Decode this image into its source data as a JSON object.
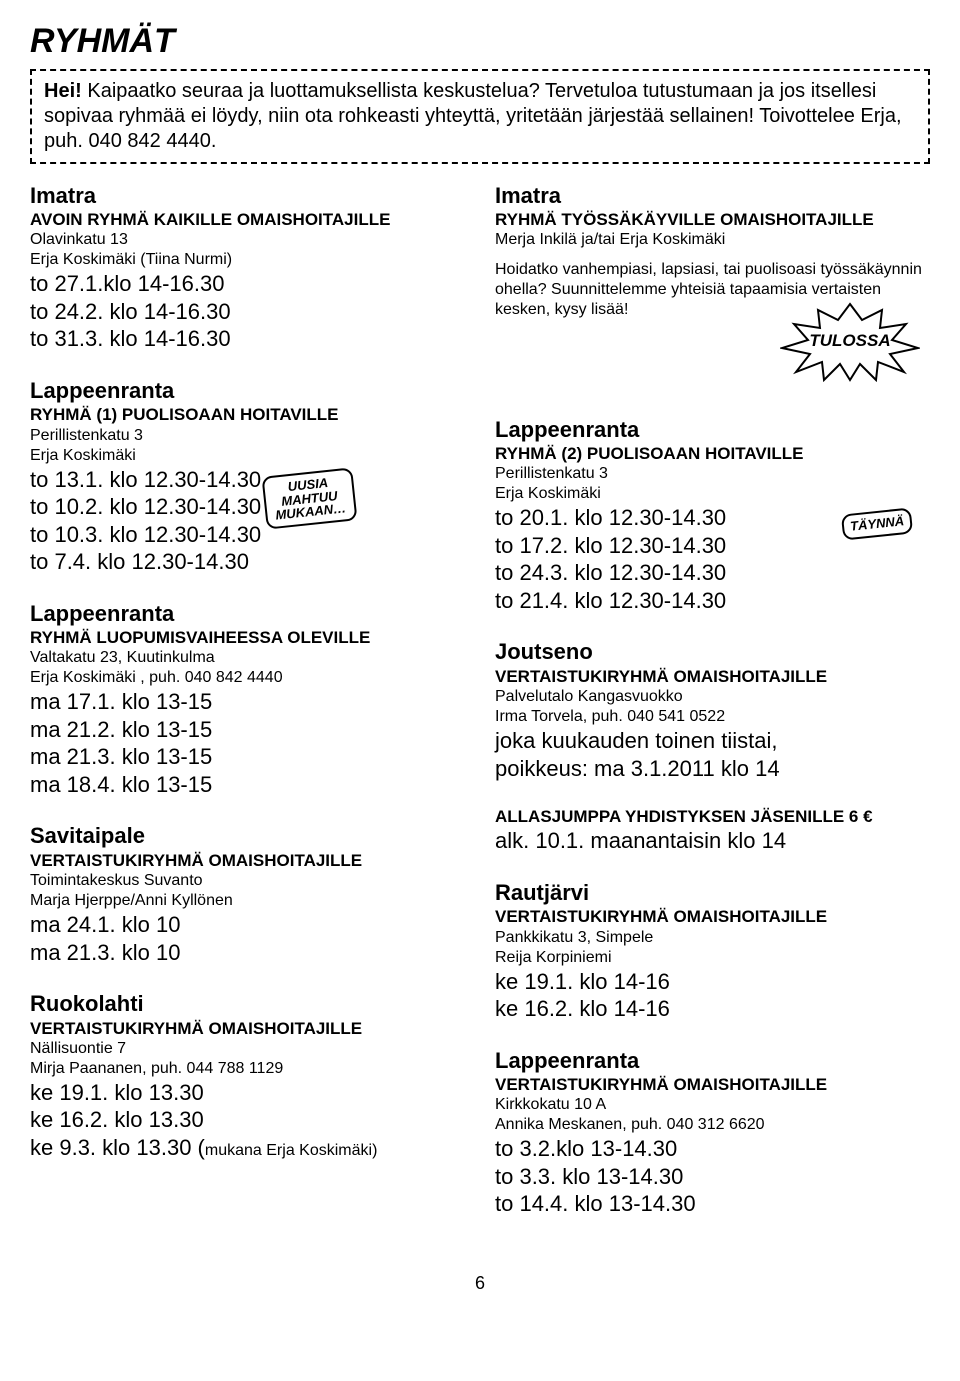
{
  "title": "RYHMÄT",
  "intro": {
    "hei": "Hei!",
    "text": "Kaipaatko seuraa ja luottamuksellista keskustelua? Tervetuloa tutustumaan ja jos itsellesi sopivaa ryhmää ei löydy, niin ota rohkeasti yhteyttä, yritetään järjestää sellainen! Toivottelee Erja, puh. 040 842 4440."
  },
  "callouts": {
    "uusia": "UUSIA\nMAHTUU\nMUKAAN…",
    "taynna": "TÄYNNÄ",
    "tulossa": "TULOSSA"
  },
  "left": [
    {
      "city": "Imatra",
      "gname": "AVOIN RYHMÄ KAIKILLE OMAISHOITAJILLE",
      "lines": [
        "Olavinkatu 13",
        "Erja Koskimäki  (Tiina Nurmi)"
      ],
      "dates": [
        "to 27.1.klo 14-16.30",
        "to 24.2. klo 14-16.30",
        "to 31.3. klo 14-16.30"
      ]
    },
    {
      "city": "Lappeenranta",
      "gname": "RYHMÄ (1) PUOLISOAAN HOITAVILLE",
      "lines": [
        "Perillistenkatu 3",
        "Erja Koskimäki"
      ],
      "dates": [
        "to 13.1. klo 12.30-14.30",
        "to 10.2. klo 12.30-14.30",
        "to 10.3. klo 12.30-14.30",
        "to 7.4. klo 12.30-14.30"
      ],
      "callout": "uusia"
    },
    {
      "city": "Lappeenranta",
      "gname": "RYHMÄ LUOPUMISVAIHEESSA OLEVILLE",
      "lines": [
        "Valtakatu 23, Kuutinkulma",
        "Erja Koskimäki , puh. 040 842 4440"
      ],
      "dates": [
        "ma 17.1. klo 13-15",
        "ma 21.2. klo 13-15",
        "ma 21.3. klo 13-15",
        "ma 18.4. klo 13-15"
      ]
    },
    {
      "city": "Savitaipale",
      "gname": "VERTAISTUKIRYHMÄ OMAISHOITAJILLE",
      "lines": [
        "Toimintakeskus Suvanto",
        "Marja Hjerppe/Anni Kyllönen"
      ],
      "dates": [
        "ma 24.1. klo 10",
        "ma 21.3. klo 10"
      ]
    },
    {
      "city": "Ruokolahti",
      "gname": "VERTAISTUKIRYHMÄ OMAISHOITAJILLE",
      "lines": [
        "Nällisuontie 7",
        "Mirja Paananen, puh. 044 788 1129"
      ],
      "dates": [
        "ke 19.1. klo 13.30",
        "ke 16.2. klo 13.30"
      ],
      "extraDateHtml": {
        "prefix": "ke 9.3. klo 13.30 (",
        "small": "mukana Erja Koskimäki)",
        "suffix": ""
      }
    }
  ],
  "right": [
    {
      "city": "Imatra",
      "gname": "RYHMÄ TYÖSSÄKÄYVILLE  OMAISHOITAJILLE",
      "lines": [
        "Merja Inkilä ja/tai Erja Koskimäki"
      ],
      "para": "Hoidatko vanhempiasi, lapsiasi, tai puolisoasi työssäkäynnin ohella? Suunnittelemme yhteisiä tapaamisia vertaisten kesken, kysy lisää!",
      "starburst": true,
      "minHeight": 210
    },
    {
      "city": "Lappeenranta",
      "gname": "RYHMÄ (2) PUOLISOAAN HOITAVILLE",
      "lines": [
        "Perillistenkatu 3",
        "Erja Koskimäki"
      ],
      "dates": [
        "to 20.1. klo 12.30-14.30",
        "to 17.2. klo 12.30-14.30",
        "to 24.3. klo 12.30-14.30",
        "to 21.4. klo 12.30-14.30"
      ],
      "callout": "taynna"
    },
    {
      "city": "Joutseno",
      "gname": "VERTAISTUKIRYHMÄ OMAISHOITAJILLE",
      "lines": [
        "Palvelutalo Kangasvuokko",
        "Irma Torvela, puh. 040 541 0522"
      ],
      "dates": [
        "joka kuukauden toinen tiistai,",
        "poikkeus: ma 3.1.2011 klo 14"
      ]
    },
    {
      "gname": "ALLASJUMPPA YHDISTYKSEN JÄSENILLE 6 €",
      "dates": [
        "alk. 10.1. maanantaisin klo 14"
      ]
    },
    {
      "city": "Rautjärvi",
      "gname": "VERTAISTUKIRYHMÄ OMAISHOITAJILLE",
      "lines": [
        "Pankkikatu 3, Simpele",
        "Reija Korpiniemi"
      ],
      "dates": [
        "ke 19.1. klo 14-16",
        "ke 16.2. klo 14-16"
      ]
    },
    {
      "city": "Lappeenranta",
      "gname": "VERTAISTUKIRYHMÄ OMAISHOITAJILLE",
      "lines": [
        "Kirkkokatu 10 A",
        "Annika Meskanen, puh. 040 312 6620"
      ],
      "dates": [
        "to 3.2.klo 13-14.30",
        "to 3.3. klo 13-14.30",
        "to 14.4. klo 13-14.30"
      ]
    }
  ],
  "pagenum": "6"
}
